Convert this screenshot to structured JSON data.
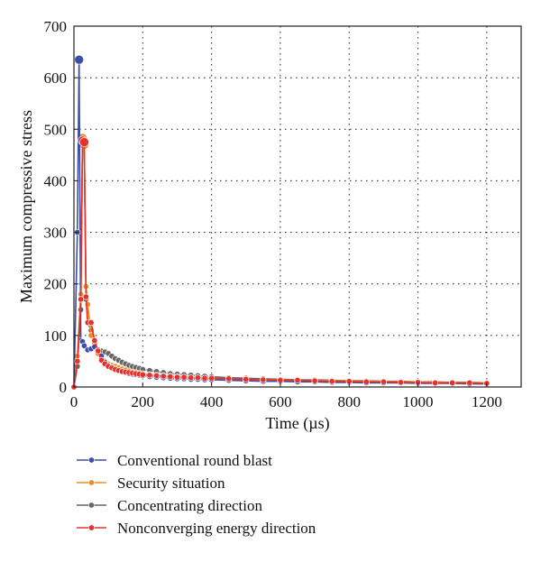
{
  "chart_data": {
    "type": "line",
    "xlabel": "Time (µs)",
    "ylabel": "Maximum compressive stress",
    "xlim": [
      0,
      1300
    ],
    "ylim": [
      0,
      700
    ],
    "xticks": [
      0,
      200,
      400,
      600,
      800,
      1000,
      1200
    ],
    "yticks": [
      0,
      100,
      200,
      300,
      400,
      500,
      600,
      700
    ],
    "grid": "dotted, at every x and y tick",
    "legend_position": "below plot, left aligned",
    "series": [
      {
        "name": "Conventional round blast",
        "color": "#3a4fa8",
        "x": [
          0,
          10,
          15,
          20,
          25,
          30,
          40,
          50,
          60,
          70,
          80,
          90,
          100,
          110,
          120,
          130,
          140,
          150,
          160,
          170,
          180,
          190,
          200,
          220,
          240,
          260,
          280,
          300,
          320,
          340,
          360,
          380,
          400,
          450,
          500,
          550,
          600,
          650,
          700,
          750,
          800,
          850,
          900,
          950,
          1000,
          1050,
          1100,
          1150,
          1200
        ],
        "values": [
          0,
          300,
          635,
          90,
          88,
          80,
          72,
          74,
          78,
          72,
          60,
          48,
          42,
          38,
          35,
          32,
          30,
          28,
          26,
          25,
          24,
          23,
          22,
          20,
          19,
          18,
          17,
          16,
          16,
          15,
          15,
          14,
          14,
          13,
          12,
          11,
          11,
          10,
          10,
          9,
          9,
          8,
          8,
          8,
          7,
          7,
          7,
          6,
          6
        ]
      },
      {
        "name": "Security situation",
        "color": "#f08c1e",
        "x": [
          0,
          10,
          20,
          25,
          30,
          35,
          40,
          50,
          60,
          70,
          80,
          90,
          100,
          110,
          120,
          130,
          140,
          150,
          160,
          170,
          180,
          190,
          200,
          220,
          240,
          260,
          280,
          300,
          320,
          340,
          360,
          380,
          400,
          450,
          500,
          550,
          600,
          650,
          700,
          750,
          800,
          850,
          900,
          950,
          1000,
          1050,
          1100,
          1150,
          1200
        ],
        "values": [
          0,
          60,
          180,
          483,
          470,
          195,
          160,
          100,
          85,
          65,
          55,
          50,
          45,
          42,
          40,
          37,
          35,
          33,
          31,
          29,
          28,
          27,
          26,
          24,
          23,
          22,
          21,
          20,
          19,
          18,
          18,
          17,
          17,
          16,
          15,
          14,
          14,
          13,
          13,
          12,
          12,
          11,
          11,
          10,
          10,
          9,
          9,
          9,
          8
        ]
      },
      {
        "name": "Concentrating direction",
        "color": "#666666",
        "x": [
          0,
          10,
          20,
          25,
          30,
          35,
          40,
          50,
          60,
          70,
          80,
          90,
          100,
          110,
          120,
          130,
          140,
          150,
          160,
          170,
          180,
          190,
          200,
          220,
          240,
          260,
          280,
          300,
          320,
          340,
          360,
          380,
          400,
          450,
          500,
          550,
          600,
          650,
          700,
          750,
          800,
          850,
          900,
          950,
          1000,
          1050,
          1100,
          1150,
          1200
        ],
        "values": [
          0,
          40,
          150,
          475,
          470,
          170,
          125,
          110,
          90,
          72,
          70,
          68,
          65,
          60,
          55,
          52,
          48,
          45,
          42,
          40,
          38,
          36,
          34,
          32,
          30,
          28,
          26,
          25,
          24,
          23,
          22,
          21,
          20,
          18,
          17,
          16,
          15,
          14,
          14,
          13,
          12,
          12,
          11,
          11,
          10,
          10,
          9,
          9,
          8
        ]
      },
      {
        "name": "Nonconverging energy direction",
        "color": "#e8302a",
        "x": [
          0,
          10,
          20,
          25,
          30,
          35,
          40,
          50,
          60,
          70,
          80,
          90,
          100,
          110,
          120,
          130,
          140,
          150,
          160,
          170,
          180,
          190,
          200,
          220,
          240,
          260,
          280,
          300,
          320,
          340,
          360,
          380,
          400,
          450,
          500,
          550,
          600,
          650,
          700,
          750,
          800,
          850,
          900,
          950,
          1000,
          1050,
          1100,
          1150,
          1200
        ],
        "values": [
          0,
          50,
          170,
          478,
          475,
          175,
          125,
          125,
          90,
          70,
          52,
          45,
          40,
          37,
          34,
          32,
          30,
          29,
          28,
          27,
          26,
          25,
          24,
          23,
          22,
          21,
          20,
          19,
          19,
          18,
          18,
          17,
          17,
          16,
          15,
          14,
          13,
          13,
          12,
          11,
          11,
          10,
          10,
          9,
          9,
          8,
          8,
          8,
          7
        ]
      }
    ]
  }
}
